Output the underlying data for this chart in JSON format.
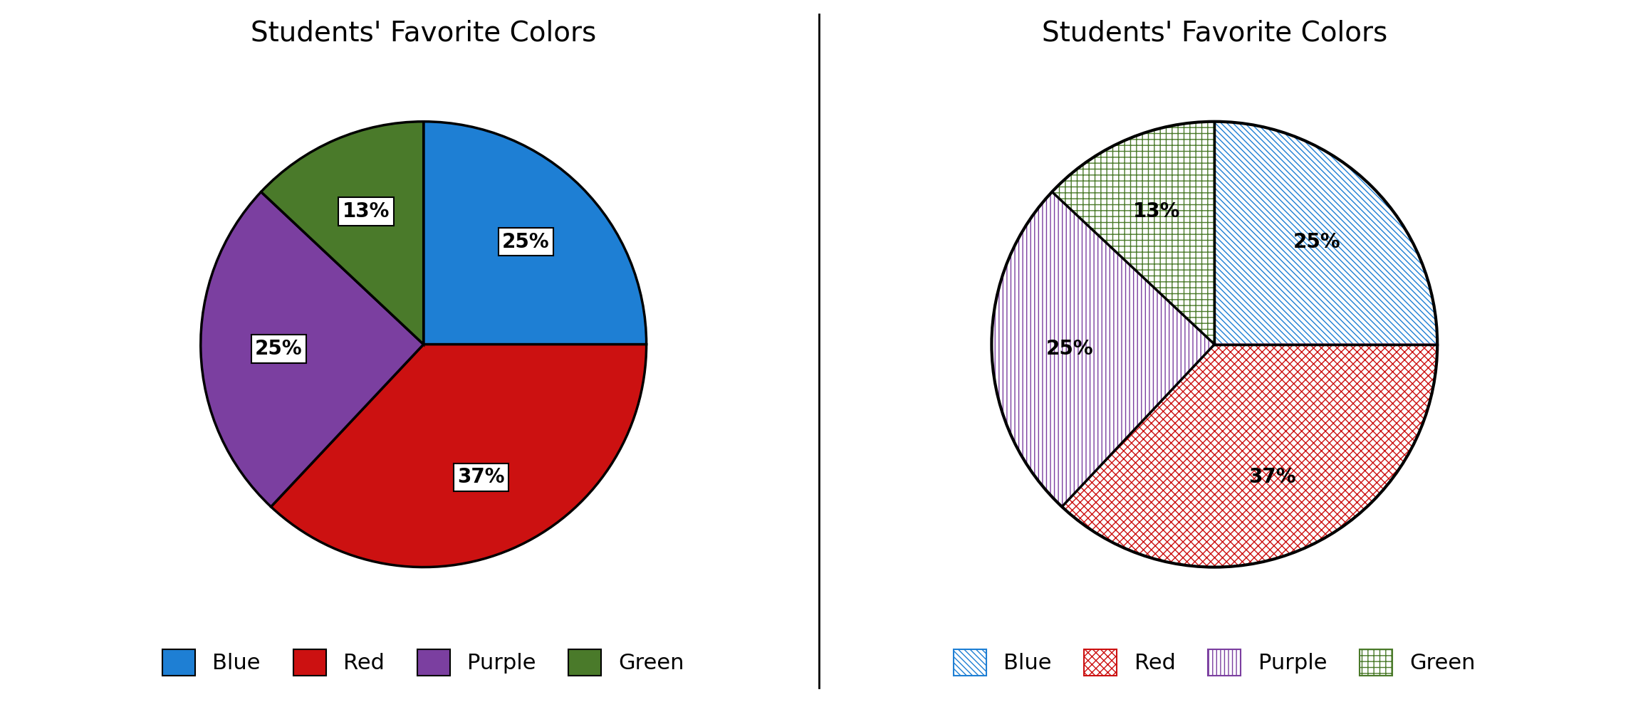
{
  "title": "Students' Favorite Colors",
  "labels": [
    "Blue",
    "Red",
    "Purple",
    "Green"
  ],
  "sizes": [
    25,
    37,
    25,
    13
  ],
  "colors_left": [
    "#1e7fd4",
    "#cc1111",
    "#7b3fa0",
    "#4a7a2a"
  ],
  "hatch_colors": [
    "#1e7fd4",
    "#cc1111",
    "#7b3fa0",
    "#4a7a2a"
  ],
  "hatch_patterns": [
    "\\\\\\\\",
    "wwww",
    "||",
    "ooo"
  ],
  "startangle": 90,
  "title_fontsize": 28,
  "legend_fontsize": 22,
  "pct_fontsize": 20,
  "figsize": [
    23.0,
    9.86
  ],
  "dpi": 100
}
